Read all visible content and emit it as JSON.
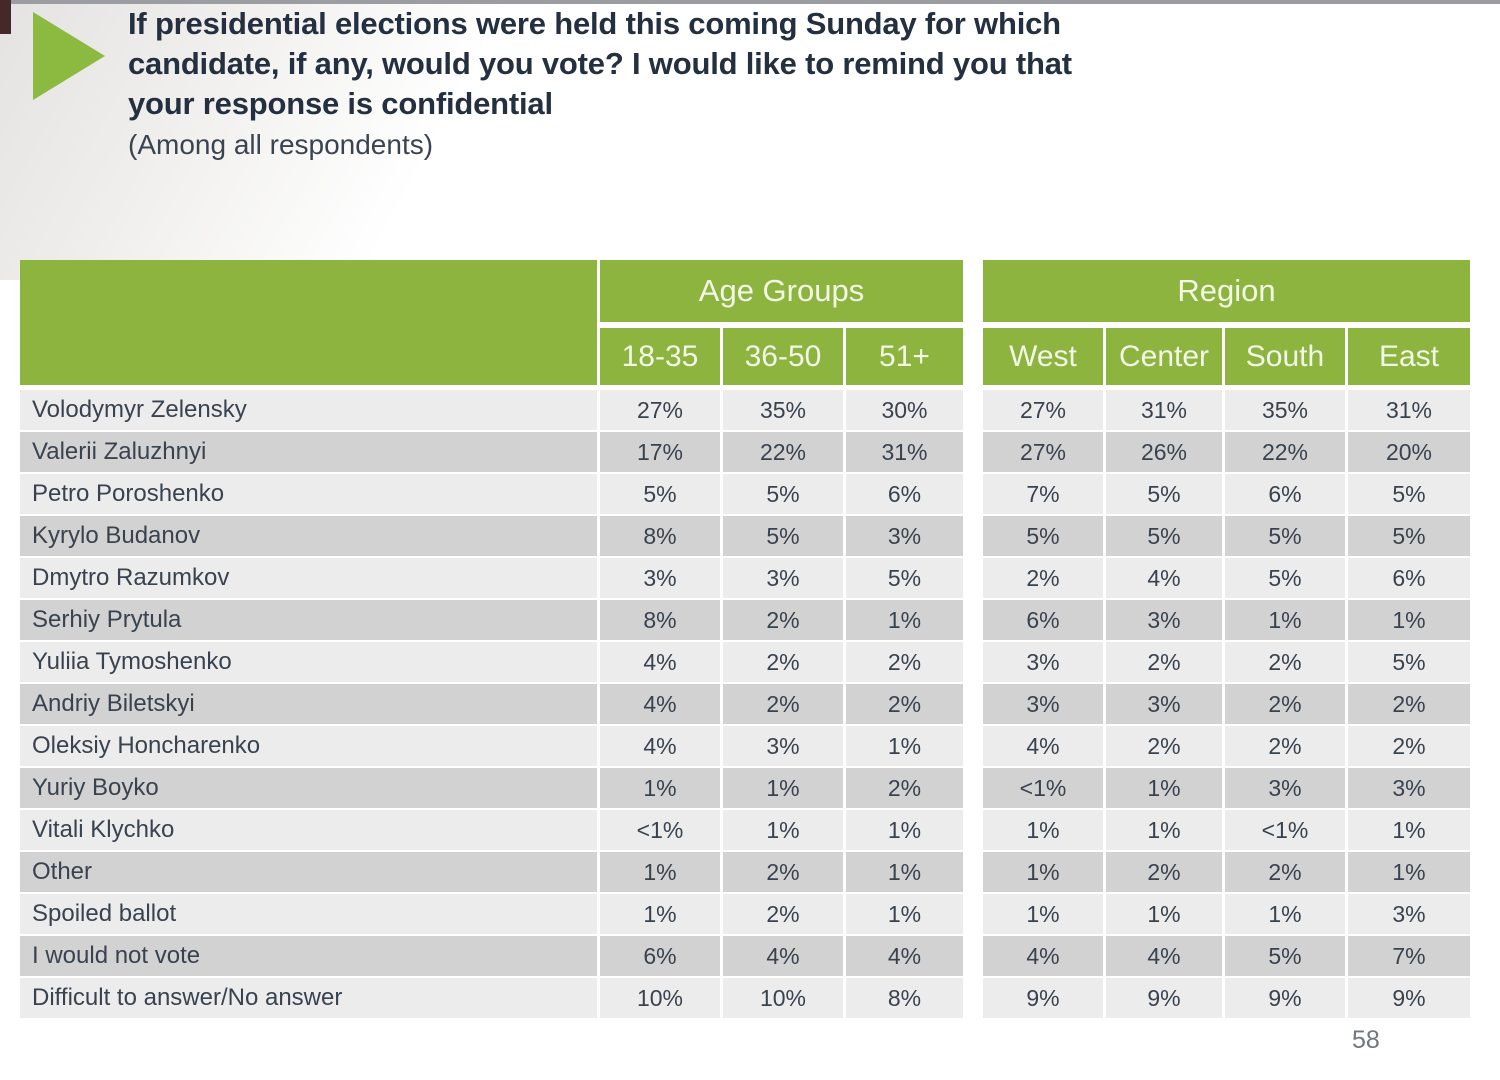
{
  "slide": {
    "title_lines": [
      "If presidential elections were held this coming Sunday for which",
      "candidate, if any, would you vote? I would like to remind you that",
      "your response is confidential"
    ],
    "subtitle": "(Among all respondents)",
    "page_number": "58"
  },
  "colors": {
    "header_green": "#8cb43e",
    "arrow_green": "#8cb93f",
    "row_light": "#ececec",
    "row_dark": "#d2d2d2",
    "text_dark": "#39434f",
    "header_text": "#f3f7e7"
  },
  "table": {
    "groups": [
      {
        "label": "Age Groups",
        "columns": [
          "18-35",
          "36-50",
          "51+"
        ]
      },
      {
        "label": "Region",
        "columns": [
          "West",
          "Center",
          "South",
          "East"
        ]
      }
    ],
    "rows": [
      {
        "label": "Volodymyr Zelensky",
        "values": [
          "27%",
          "35%",
          "30%",
          "27%",
          "31%",
          "35%",
          "31%"
        ]
      },
      {
        "label": "Valerii Zaluzhnyi",
        "values": [
          "17%",
          "22%",
          "31%",
          "27%",
          "26%",
          "22%",
          "20%"
        ]
      },
      {
        "label": "Petro Poroshenko",
        "values": [
          "5%",
          "5%",
          "6%",
          "7%",
          "5%",
          "6%",
          "5%"
        ]
      },
      {
        "label": "Kyrylo Budanov",
        "values": [
          "8%",
          "5%",
          "3%",
          "5%",
          "5%",
          "5%",
          "5%"
        ]
      },
      {
        "label": "Dmytro Razumkov",
        "values": [
          "3%",
          "3%",
          "5%",
          "2%",
          "4%",
          "5%",
          "6%"
        ]
      },
      {
        "label": "Serhiy Prytula",
        "values": [
          "8%",
          "2%",
          "1%",
          "6%",
          "3%",
          "1%",
          "1%"
        ]
      },
      {
        "label": "Yuliia Tymoshenko",
        "values": [
          "4%",
          "2%",
          "2%",
          "3%",
          "2%",
          "2%",
          "5%"
        ]
      },
      {
        "label": "Andriy Biletskyi",
        "values": [
          "4%",
          "2%",
          "2%",
          "3%",
          "3%",
          "2%",
          "2%"
        ]
      },
      {
        "label": "Oleksiy Honcharenko",
        "values": [
          "4%",
          "3%",
          "1%",
          "4%",
          "2%",
          "2%",
          "2%"
        ]
      },
      {
        "label": "Yuriy Boyko",
        "values": [
          "1%",
          "1%",
          "2%",
          "<1%",
          "1%",
          "3%",
          "3%"
        ]
      },
      {
        "label": "Vitali Klychko",
        "values": [
          "<1%",
          "1%",
          "1%",
          "1%",
          "1%",
          "<1%",
          "1%"
        ]
      },
      {
        "label": "Other",
        "values": [
          "1%",
          "2%",
          "1%",
          "1%",
          "2%",
          "2%",
          "1%"
        ]
      },
      {
        "label": "Spoiled ballot",
        "values": [
          "1%",
          "2%",
          "1%",
          "1%",
          "1%",
          "1%",
          "3%"
        ]
      },
      {
        "label": "I would not vote",
        "values": [
          "6%",
          "4%",
          "4%",
          "4%",
          "4%",
          "5%",
          "7%"
        ]
      },
      {
        "label": "Difficult to answer/No answer",
        "values": [
          "10%",
          "10%",
          "8%",
          "9%",
          "9%",
          "9%",
          "9%"
        ]
      }
    ]
  }
}
